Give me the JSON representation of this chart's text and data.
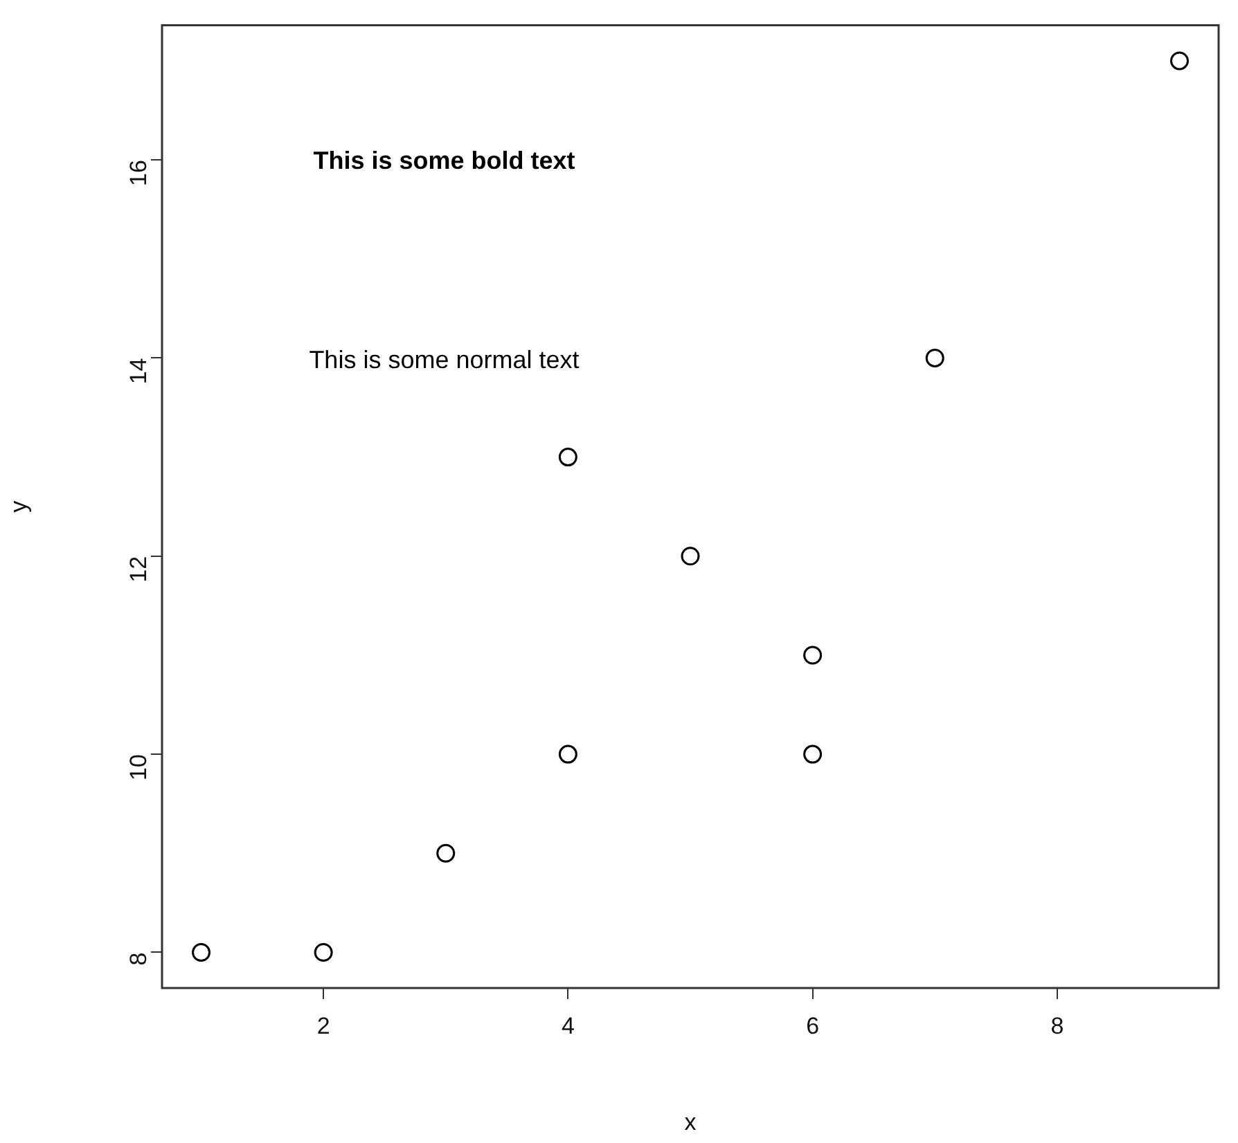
{
  "chart_data": {
    "type": "scatter",
    "xlabel": "x",
    "ylabel": "y",
    "x": [
      1,
      2,
      3,
      4,
      4,
      5,
      6,
      6,
      7,
      9
    ],
    "values": [
      8,
      8,
      9,
      10,
      13,
      12,
      10,
      11,
      14,
      17
    ],
    "color": "#000000",
    "marker": "circle",
    "grid": false,
    "legend": false,
    "xlim": [
      0.68,
      9.32
    ],
    "ylim": [
      7.64,
      17.36
    ],
    "xticks": [
      2,
      4,
      6,
      8
    ],
    "yticks": [
      8,
      10,
      12,
      14,
      16
    ],
    "annotations": [
      "This is some bold text",
      "This is some normal text"
    ]
  }
}
